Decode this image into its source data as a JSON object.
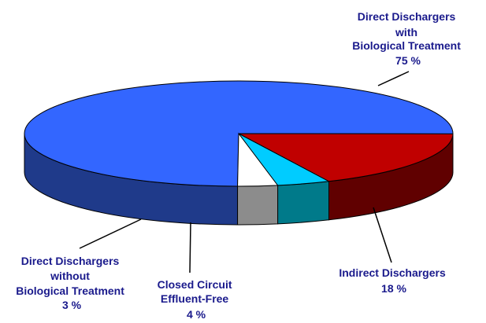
{
  "chart_data": {
    "type": "pie",
    "slices": [
      {
        "label_lines": [
          "Direct Dischargers",
          "with",
          "Biological Treatment",
          "75 %"
        ],
        "value": 75,
        "color": "#3366ff",
        "side_color": "#1f3a8a"
      },
      {
        "label_lines": [
          "Indirect Dischargers",
          "18 %"
        ],
        "value": 18,
        "color": "#c00000",
        "side_color": "#600000"
      },
      {
        "label_lines": [
          "Closed Circuit",
          "Effluent-Free",
          "4 %"
        ],
        "value": 4,
        "color": "#00ccff",
        "side_color": "#007a8a"
      },
      {
        "label_lines": [
          "Direct Dischargers",
          "without",
          "Biological Treatment",
          "3 %"
        ],
        "value": 3,
        "color": "#ffffff",
        "side_color": "#8c8c8c"
      }
    ]
  }
}
